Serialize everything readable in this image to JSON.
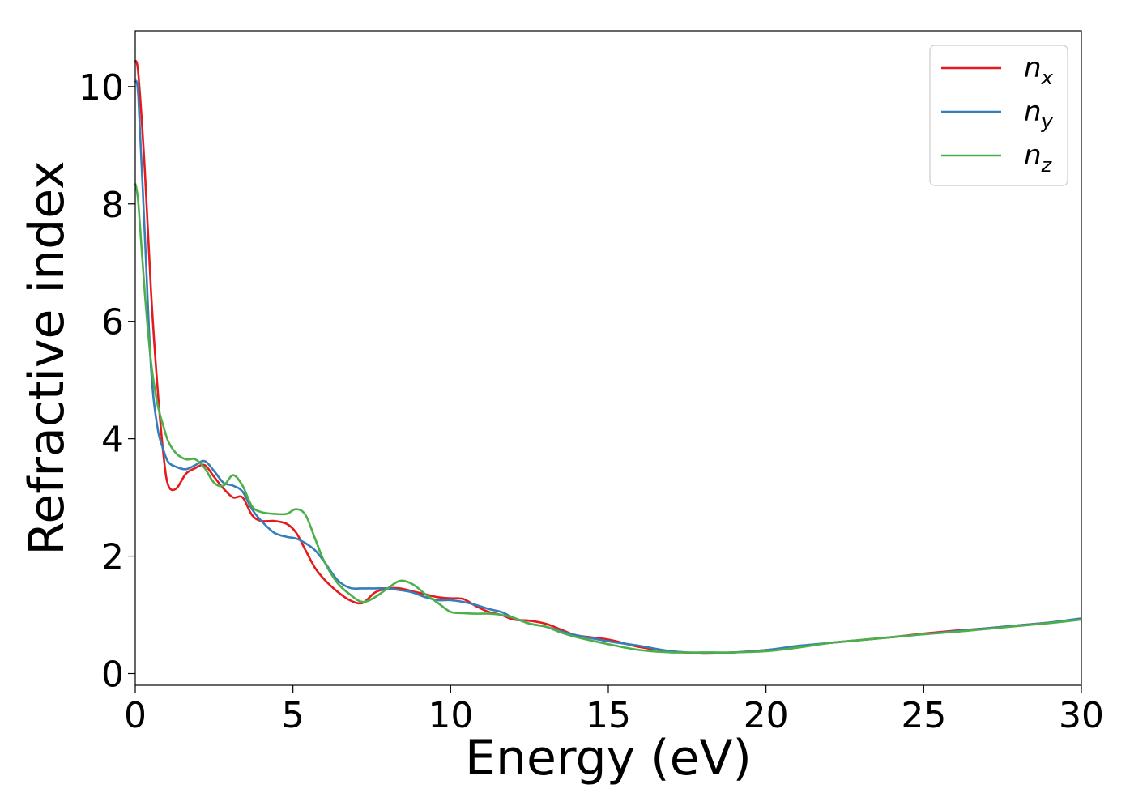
{
  "chart_data": {
    "type": "line",
    "title": "",
    "xlabel": "Energy (eV)",
    "ylabel": "Refractive index",
    "xlim": [
      0,
      30
    ],
    "ylim": [
      -0.2,
      10.95
    ],
    "xticks": [
      0,
      5,
      10,
      15,
      20,
      25,
      30
    ],
    "yticks": [
      0,
      2,
      4,
      6,
      8,
      10
    ],
    "grid": false,
    "legend_position": "top-right",
    "series": [
      {
        "name": "n",
        "subscript": "x",
        "color": "#e41a1c",
        "x": [
          0,
          0.1,
          0.3,
          0.5,
          0.7,
          0.9,
          1.05,
          1.3,
          1.6,
          1.9,
          2.2,
          2.5,
          2.8,
          3.1,
          3.4,
          3.7,
          4.0,
          4.4,
          4.8,
          5.1,
          5.4,
          5.7,
          6.0,
          6.4,
          6.8,
          7.2,
          7.6,
          8.0,
          8.4,
          8.8,
          9.2,
          9.6,
          10.0,
          10.4,
          10.8,
          11.2,
          11.6,
          12.0,
          12.5,
          13.0,
          13.5,
          14.0,
          15.0,
          16.0,
          17.0,
          18.0,
          19.0,
          20.0,
          21.0,
          22.0,
          23.0,
          24.0,
          25.0,
          26.0,
          27.0,
          28.0,
          29.0,
          30.0
        ],
        "values": [
          10.45,
          10.2,
          8.6,
          6.5,
          4.9,
          3.7,
          3.2,
          3.15,
          3.4,
          3.5,
          3.55,
          3.35,
          3.15,
          3.0,
          3.0,
          2.7,
          2.6,
          2.6,
          2.55,
          2.4,
          2.1,
          1.8,
          1.6,
          1.4,
          1.25,
          1.2,
          1.38,
          1.45,
          1.45,
          1.4,
          1.35,
          1.3,
          1.28,
          1.27,
          1.15,
          1.05,
          1.0,
          0.92,
          0.9,
          0.85,
          0.75,
          0.65,
          0.58,
          0.45,
          0.38,
          0.34,
          0.36,
          0.4,
          0.45,
          0.52,
          0.57,
          0.62,
          0.68,
          0.73,
          0.77,
          0.82,
          0.87,
          0.93
        ]
      },
      {
        "name": "n",
        "subscript": "y",
        "color": "#377eb8",
        "x": [
          0,
          0.1,
          0.3,
          0.5,
          0.7,
          0.9,
          1.05,
          1.3,
          1.6,
          1.9,
          2.2,
          2.5,
          2.8,
          3.1,
          3.4,
          3.7,
          4.0,
          4.4,
          4.8,
          5.1,
          5.4,
          5.7,
          6.0,
          6.4,
          6.8,
          7.2,
          7.6,
          8.0,
          8.4,
          8.8,
          9.2,
          9.6,
          10.0,
          10.4,
          10.8,
          11.2,
          11.6,
          12.0,
          12.5,
          13.0,
          13.5,
          14.0,
          15.0,
          16.0,
          17.0,
          18.0,
          19.0,
          20.0,
          21.0,
          22.0,
          23.0,
          24.0,
          25.0,
          26.0,
          27.0,
          28.0,
          29.0,
          30.0
        ],
        "values": [
          10.1,
          9.8,
          7.5,
          5.2,
          4.2,
          3.8,
          3.6,
          3.52,
          3.48,
          3.55,
          3.62,
          3.45,
          3.25,
          3.2,
          3.1,
          2.8,
          2.6,
          2.4,
          2.33,
          2.3,
          2.22,
          2.1,
          1.9,
          1.6,
          1.46,
          1.45,
          1.45,
          1.45,
          1.42,
          1.38,
          1.3,
          1.25,
          1.25,
          1.22,
          1.17,
          1.1,
          1.05,
          0.95,
          0.85,
          0.8,
          0.72,
          0.65,
          0.55,
          0.47,
          0.38,
          0.35,
          0.36,
          0.4,
          0.47,
          0.52,
          0.57,
          0.62,
          0.67,
          0.72,
          0.77,
          0.82,
          0.87,
          0.94
        ]
      },
      {
        "name": "n",
        "subscript": "z",
        "color": "#4daf4a",
        "x": [
          0,
          0.1,
          0.3,
          0.5,
          0.7,
          0.9,
          1.05,
          1.3,
          1.6,
          1.9,
          2.2,
          2.5,
          2.8,
          3.1,
          3.4,
          3.7,
          4.0,
          4.4,
          4.8,
          5.1,
          5.4,
          5.7,
          6.0,
          6.4,
          6.8,
          7.2,
          7.6,
          8.0,
          8.4,
          8.8,
          9.2,
          9.6,
          10.0,
          10.4,
          10.8,
          11.2,
          11.6,
          12.0,
          12.5,
          13.0,
          13.5,
          14.0,
          15.0,
          16.0,
          17.0,
          18.0,
          19.0,
          20.0,
          21.0,
          22.0,
          23.0,
          24.0,
          25.0,
          26.0,
          27.0,
          28.0,
          29.0,
          30.0
        ],
        "values": [
          8.35,
          8.0,
          6.5,
          5.3,
          4.6,
          4.2,
          3.95,
          3.75,
          3.65,
          3.65,
          3.5,
          3.25,
          3.2,
          3.38,
          3.2,
          2.85,
          2.75,
          2.72,
          2.72,
          2.8,
          2.7,
          2.3,
          1.9,
          1.55,
          1.35,
          1.22,
          1.3,
          1.45,
          1.58,
          1.52,
          1.35,
          1.2,
          1.05,
          1.03,
          1.02,
          1.02,
          1.0,
          0.95,
          0.85,
          0.8,
          0.7,
          0.62,
          0.5,
          0.4,
          0.36,
          0.36,
          0.36,
          0.38,
          0.44,
          0.52,
          0.57,
          0.62,
          0.67,
          0.71,
          0.76,
          0.81,
          0.86,
          0.92
        ]
      }
    ]
  }
}
